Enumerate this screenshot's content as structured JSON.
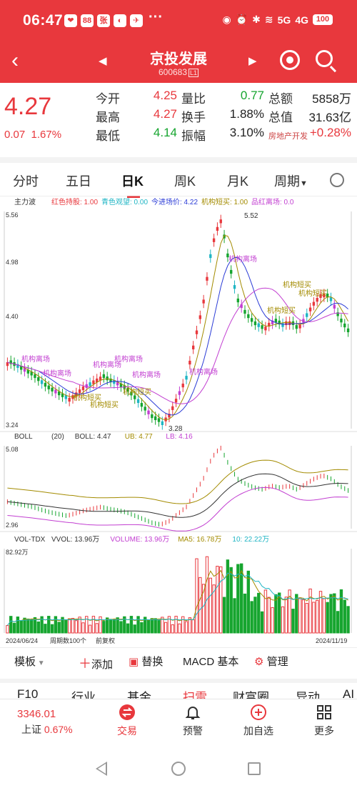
{
  "status_bar": {
    "time": "06:47",
    "app_icons": [
      "❤",
      "88",
      "张",
      "◐",
      "✈"
    ],
    "more": "···",
    "net1": "5G",
    "net2": "4G",
    "battery": "100"
  },
  "nav": {
    "title": "京投发展",
    "code": "600683",
    "code_suffix": "L1"
  },
  "quote": {
    "price": "4.27",
    "change": "0.07",
    "change_pct": "1.67%",
    "rows": [
      [
        [
          "今开",
          "4.25",
          "red"
        ],
        [
          "量比",
          "0.77",
          "green"
        ],
        [
          "总额",
          "5858万",
          "dark"
        ]
      ],
      [
        [
          "最高",
          "4.27",
          "red"
        ],
        [
          "换手",
          "1.88%",
          "dark"
        ],
        [
          "总值",
          "31.63亿",
          "dark"
        ]
      ],
      [
        [
          "最低",
          "4.14",
          "green"
        ],
        [
          "振幅",
          "3.10%",
          "dark"
        ],
        [
          "房地产开发",
          "+0.28%",
          "red"
        ]
      ]
    ]
  },
  "tabs": [
    "分时",
    "五日",
    "日K",
    "周K",
    "月K",
    "周期"
  ],
  "active_tab": "日K",
  "chart_data": [
    {
      "type": "candlestick",
      "indicator": "主力波",
      "legend": [
        {
          "label": "红色持股: 1.00",
          "color": "#e8383d"
        },
        {
          "label": "青色观望: 0.00",
          "color": "#1fb5c4"
        },
        {
          "label": "今进场价: 4.22",
          "color": "#2a3bd6"
        },
        {
          "label": "机构短买: 1.00",
          "color": "#a38b00"
        },
        {
          "label": "品红离场: 0.0",
          "color": "#c23fd1"
        }
      ],
      "y_ticks": [
        "5.56",
        "4.98",
        "4.40",
        "3.24"
      ],
      "ylim": [
        3.24,
        5.56
      ],
      "high_label": "5.52",
      "low_label": "3.28",
      "annotations": [
        "机构离场",
        "机构离场",
        "机构离场",
        "机构离场",
        "机构离场",
        "机构离场",
        "机构离场",
        "机构短买",
        "机构短买",
        "机构短买",
        "机构短买",
        "机构短买",
        "机构短买"
      ],
      "trend": [
        3.95,
        3.9,
        3.85,
        3.8,
        3.72,
        3.65,
        3.6,
        3.55,
        3.62,
        3.7,
        3.75,
        3.8,
        3.74,
        3.7,
        3.65,
        3.55,
        3.45,
        3.35,
        3.3,
        3.4,
        3.6,
        3.8,
        4.2,
        4.6,
        5.2,
        5.5,
        5.0,
        4.6,
        4.45,
        4.35,
        4.3,
        4.4,
        4.35,
        4.4,
        4.3,
        4.45,
        4.6,
        4.7,
        4.6,
        4.4,
        4.27
      ]
    },
    {
      "type": "line",
      "indicator": "BOLL",
      "legend": [
        {
          "label": "(20)",
          "color": "#333"
        },
        {
          "label": "BOLL: 4.47",
          "color": "#333"
        },
        {
          "label": "UB: 4.77",
          "color": "#a38b00"
        },
        {
          "label": "LB: 4.16",
          "color": "#c23fd1"
        }
      ],
      "y_ticks": [
        "5.08",
        "2.96"
      ],
      "ylim": [
        2.96,
        5.08
      ]
    },
    {
      "type": "bar",
      "indicator": "VOL-TDX",
      "legend": [
        {
          "label": "VVOL: 13.96万",
          "color": "#333"
        },
        {
          "label": "VOLUME: 13.96万",
          "color": "#c23fd1"
        },
        {
          "label": "MA5: 16.78万",
          "color": "#a38b00"
        },
        {
          "label": "10: 22.22万",
          "color": "#1fb5c4"
        }
      ],
      "y_ticks": [
        "82.92万"
      ],
      "x_labels": [
        "2024/06/24",
        "周期数100个",
        "前复权",
        "2024/11/19"
      ]
    }
  ],
  "toolbar": {
    "template": "模板",
    "add": "添加",
    "replace": "替换",
    "macd": "MACD 基本",
    "manage": "管理"
  },
  "subtabs": [
    "F10",
    "行业",
    "基金",
    "扫雷",
    "财富圈",
    "异动",
    "AI"
  ],
  "active_subtab": "扫雷",
  "bottom": {
    "index_value": "3346.01",
    "index_name": "上证",
    "index_pct": "0.67%",
    "buttons": [
      "交易",
      "预警",
      "加自选",
      "更多"
    ]
  }
}
